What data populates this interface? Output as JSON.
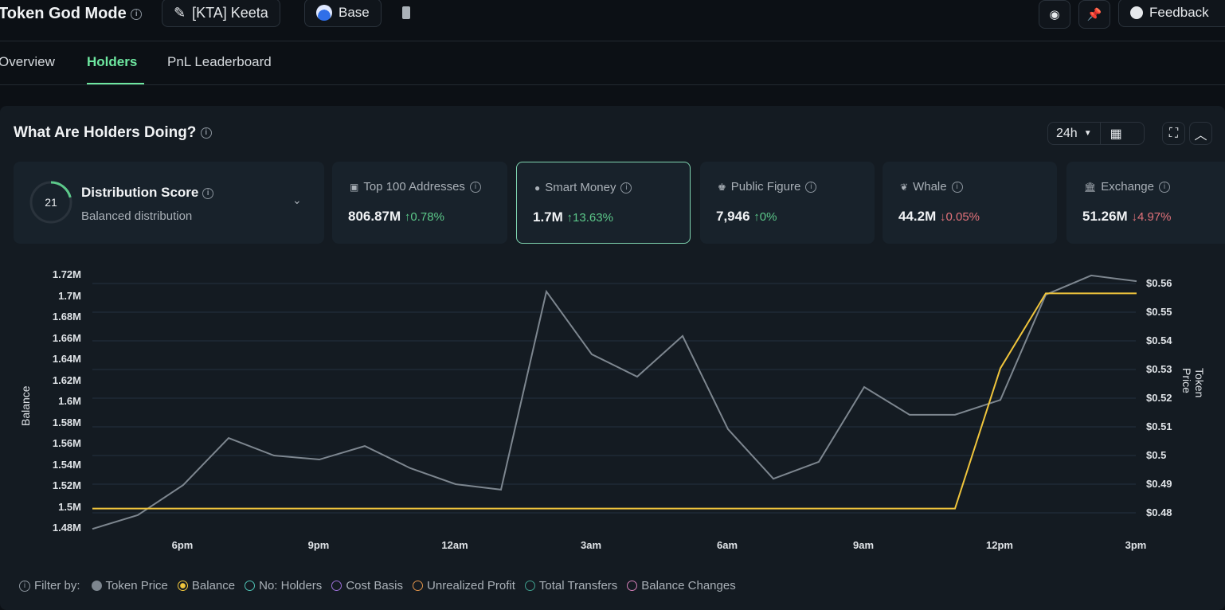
{
  "header": {
    "title": "Token God Mode",
    "token_label": "[KTA] Keeta",
    "chain_label": "Base",
    "feedback_label": "Feedback"
  },
  "tabs": [
    {
      "label": "Overview"
    },
    {
      "label": "Holders",
      "active": true
    },
    {
      "label": "PnL Leaderboard"
    }
  ],
  "section": {
    "title": "What Are Holders Doing?",
    "timeframe": "24h"
  },
  "distribution": {
    "score": "21",
    "score_fraction": 0.21,
    "title": "Distribution Score",
    "subtitle": "Balanced distribution"
  },
  "cards": [
    {
      "label": "Top 100 Addresses",
      "icon": "wallet-icon",
      "value": "806.87M",
      "change": "0.78%",
      "direction": "up"
    },
    {
      "label": "Smart Money",
      "icon": "smart-money-icon",
      "value": "1.7M",
      "change": "13.63%",
      "direction": "up",
      "selected": true
    },
    {
      "label": "Public Figure",
      "icon": "public-figure-icon",
      "value": "7,946",
      "change": "0%",
      "direction": "up"
    },
    {
      "label": "Whale",
      "icon": "whale-icon",
      "value": "44.2M",
      "change": "0.05%",
      "direction": "down"
    },
    {
      "label": "Exchange",
      "icon": "bank-icon",
      "value": "51.26M",
      "change": "4.97%",
      "direction": "down"
    }
  ],
  "chart_data": {
    "type": "line",
    "ylabel_left": "Balance",
    "ylabel_right": "Token Price",
    "left_ticks": [
      "1.72M",
      "1.7M",
      "1.68M",
      "1.66M",
      "1.64M",
      "1.62M",
      "1.6M",
      "1.58M",
      "1.56M",
      "1.54M",
      "1.52M",
      "1.5M",
      "1.48M"
    ],
    "right_ticks": [
      "$0.56",
      "$0.55",
      "$0.54",
      "$0.53",
      "$0.52",
      "$0.51",
      "$0.5",
      "$0.49",
      "$0.48"
    ],
    "x_ticks": [
      "6pm",
      "9pm",
      "12am",
      "3am",
      "6am",
      "9am",
      "12pm",
      "3pm"
    ],
    "x": [
      "4pm",
      "5pm",
      "6pm",
      "7pm",
      "8pm",
      "9pm",
      "10pm",
      "11pm",
      "12am",
      "1am",
      "2am",
      "3am",
      "4am",
      "5am",
      "6am",
      "7am",
      "8am",
      "9am",
      "10am",
      "11am",
      "12pm",
      "1pm",
      "2pm",
      "3pm"
    ],
    "ylim_left": [
      1.48,
      1.72
    ],
    "ylim_right": [
      0.48,
      0.56
    ],
    "series": [
      {
        "name": "Token Price",
        "axis": "right",
        "color": "#7d868f",
        "values": [
          0.4744,
          0.4792,
          0.4897,
          0.5061,
          0.5,
          0.4986,
          0.5033,
          0.4956,
          0.49,
          0.4881,
          0.5572,
          0.5353,
          0.5275,
          0.5417,
          0.5092,
          0.4919,
          0.4978,
          0.5239,
          0.5142,
          0.5142,
          0.5194,
          0.5561,
          0.5628,
          0.5608
        ]
      },
      {
        "name": "Balance",
        "axis": "left",
        "unit": "M",
        "color": "#f0c53c",
        "values": [
          1.498,
          1.498,
          1.498,
          1.498,
          1.498,
          1.498,
          1.498,
          1.498,
          1.498,
          1.498,
          1.498,
          1.498,
          1.498,
          1.498,
          1.498,
          1.498,
          1.498,
          1.498,
          1.498,
          1.498,
          1.631,
          1.702,
          1.702,
          1.702
        ]
      }
    ],
    "grid": true
  },
  "legend": {
    "prefix": "Filter by:",
    "items": [
      {
        "label": "Token Price",
        "color": "#7d868f",
        "state": "filled"
      },
      {
        "label": "Balance",
        "color": "#f0c53c",
        "state": "selected"
      },
      {
        "label": "No: Holders",
        "color": "#4fc3b5",
        "state": "off"
      },
      {
        "label": "Cost Basis",
        "color": "#9b6fd6",
        "state": "off"
      },
      {
        "label": "Unrealized Profit",
        "color": "#e0934a",
        "state": "off"
      },
      {
        "label": "Total Transfers",
        "color": "#3fa08f",
        "state": "off"
      },
      {
        "label": "Balance Changes",
        "color": "#d47fb8",
        "state": "off"
      }
    ]
  }
}
